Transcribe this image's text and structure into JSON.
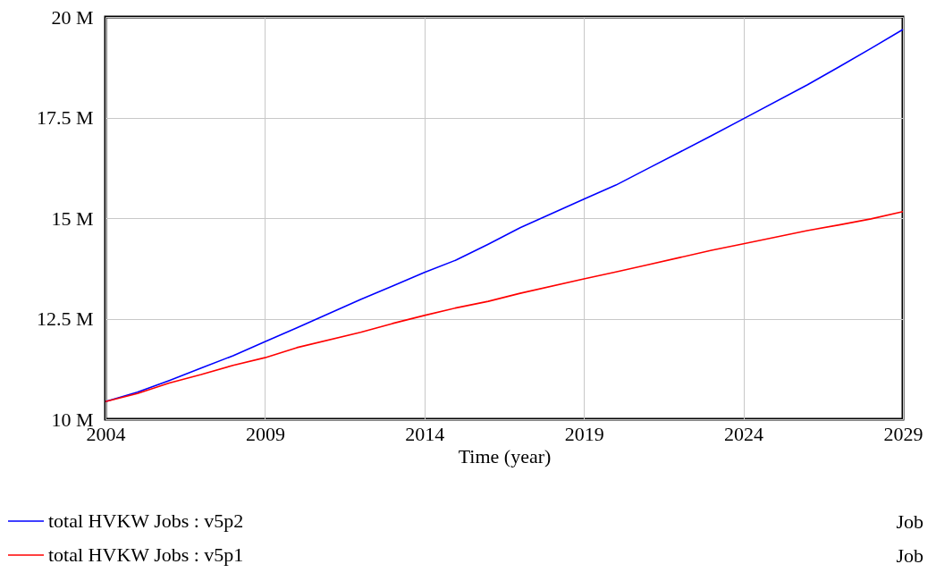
{
  "chart_data": {
    "type": "line",
    "xlabel": "Time (year)",
    "x": [
      2004,
      2005,
      2006,
      2007,
      2008,
      2009,
      2010,
      2012,
      2013,
      2014,
      2015,
      2016,
      2017,
      2019,
      2020,
      2021,
      2022,
      2023,
      2024,
      2026,
      2027,
      2028,
      2029
    ],
    "series": [
      {
        "name": "total HVKW Jobs : v5p2",
        "color": "#0000ff",
        "values": [
          10.44,
          10.67,
          10.96,
          11.27,
          11.58,
          11.93,
          12.27,
          12.98,
          13.31,
          13.65,
          13.96,
          14.35,
          14.76,
          15.47,
          15.82,
          16.23,
          16.64,
          17.05,
          17.47,
          18.31,
          18.76,
          19.22,
          19.69
        ]
      },
      {
        "name": "total HVKW Jobs : v5p1",
        "color": "#ff0000",
        "values": [
          10.44,
          10.64,
          10.9,
          11.11,
          11.34,
          11.53,
          11.78,
          12.16,
          12.38,
          12.58,
          12.77,
          12.93,
          13.13,
          13.49,
          13.66,
          13.84,
          14.02,
          14.2,
          14.36,
          14.69,
          14.83,
          14.98,
          15.16
        ]
      }
    ],
    "xlim": [
      2004,
      2029
    ],
    "xticks": [
      2004,
      2009,
      2014,
      2019,
      2024,
      2029
    ],
    "ylim": [
      10,
      20
    ],
    "yticks": [
      {
        "value": 10,
        "label": "10 M"
      },
      {
        "value": 12.5,
        "label": "12.5 M"
      },
      {
        "value": 15,
        "label": "15 M"
      },
      {
        "value": 17.5,
        "label": "17.5 M"
      },
      {
        "value": 20,
        "label": "20 M"
      }
    ],
    "grid": true,
    "legend": "bottom",
    "annotations": [
      "Job",
      "Job"
    ]
  }
}
